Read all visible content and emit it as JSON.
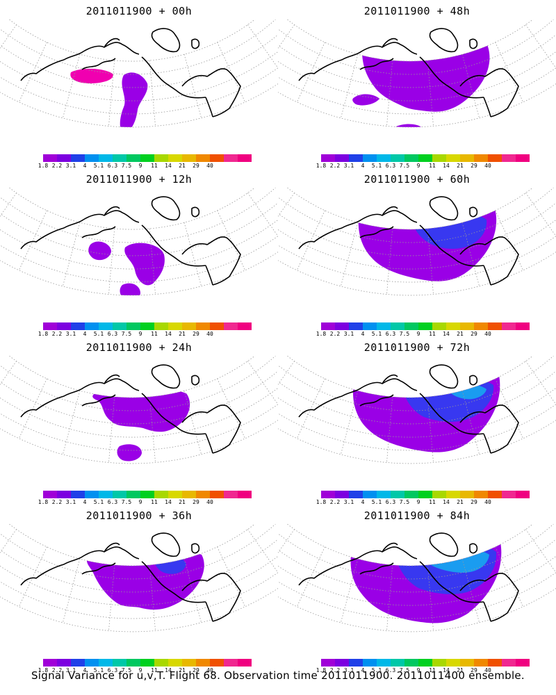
{
  "panels": [
    {
      "title": "2011011900 + 00h",
      "shading": "p0"
    },
    {
      "title": "2011011900 + 48h",
      "shading": "p48"
    },
    {
      "title": "2011011900 + 12h",
      "shading": "p12"
    },
    {
      "title": "2011011900 + 60h",
      "shading": "p60"
    },
    {
      "title": "2011011900 + 24h",
      "shading": "p24"
    },
    {
      "title": "2011011900 + 72h",
      "shading": "p72"
    },
    {
      "title": "2011011900 + 36h",
      "shading": "p36"
    },
    {
      "title": "2011011900 + 84h",
      "shading": "p84"
    }
  ],
  "colorbar": {
    "colors": [
      "#a000d8",
      "#7c00e0",
      "#2040e8",
      "#0090f0",
      "#00b8e8",
      "#00c8a8",
      "#00c860",
      "#00d020",
      "#a8d800",
      "#d8d800",
      "#e8b800",
      "#f08800",
      "#f05000",
      "#f02890",
      "#f00080"
    ],
    "tick_labels": [
      "1.8",
      "2.2",
      "3.1",
      "4",
      "5.1",
      "6.3",
      "7.5",
      "9",
      "11",
      "14",
      "21",
      "29",
      "40"
    ]
  },
  "footer": "Signal Variance for u,v,T. Flight 68. Observation time 2011011900. 2011011400 ensemble."
}
